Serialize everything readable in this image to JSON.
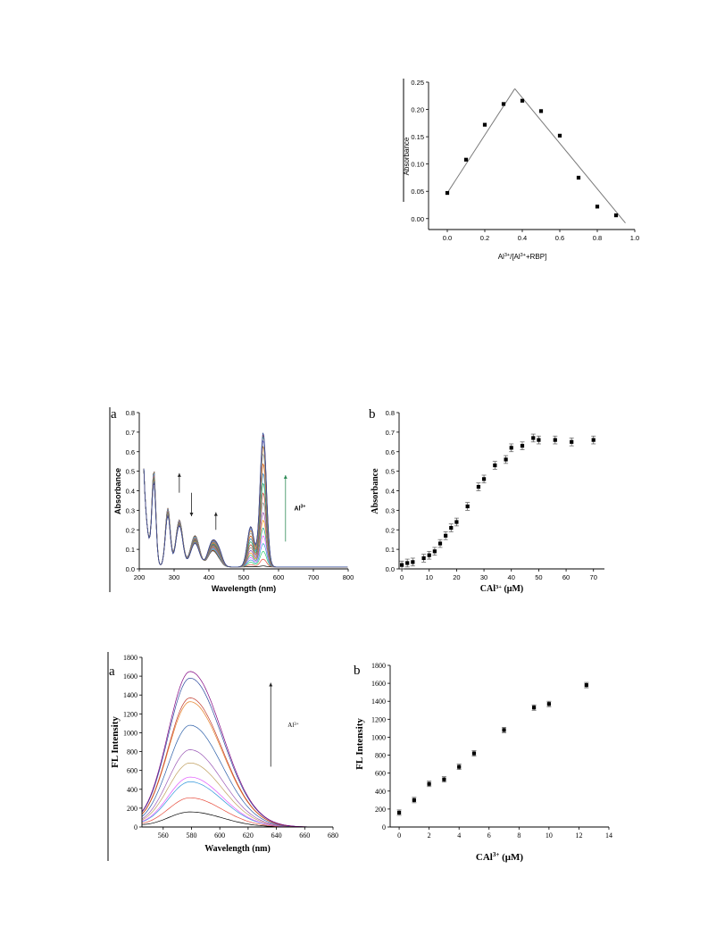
{
  "chart_data": [
    {
      "id": "job",
      "type": "scatter",
      "ylabel": "Absorbance",
      "xlabel_parts": [
        "Al",
        "3+",
        "/[Al",
        "3+",
        "+RBP]"
      ],
      "xlim": [
        -0.1,
        1.0
      ],
      "ylim": [
        -0.02,
        0.25
      ],
      "xticks": [
        "0.0",
        "0.2",
        "0.4",
        "0.6",
        "0.8",
        "1.0"
      ],
      "yticks": [
        "0.00",
        "0.05",
        "0.10",
        "0.15",
        "0.20",
        "0.25"
      ],
      "points": [
        [
          0.0,
          0.047
        ],
        [
          0.1,
          0.108
        ],
        [
          0.2,
          0.172
        ],
        [
          0.3,
          0.21
        ],
        [
          0.4,
          0.216
        ],
        [
          0.5,
          0.197
        ],
        [
          0.6,
          0.152
        ],
        [
          0.7,
          0.075
        ],
        [
          0.8,
          0.022
        ],
        [
          0.9,
          0.006
        ]
      ],
      "fit_lines": [
        [
          [
            0.0,
            0.047
          ],
          [
            0.36,
            0.238
          ]
        ],
        [
          [
            0.36,
            0.238
          ],
          [
            0.95,
            -0.008
          ]
        ]
      ],
      "grid": false
    },
    {
      "id": "uv-a",
      "type": "line",
      "panel_label": "a",
      "xlabel": "Wavelength (nm)",
      "ylabel": "Absorbance",
      "xlim": [
        200,
        800
      ],
      "ylim": [
        0.0,
        0.8
      ],
      "xticks": [
        "200",
        "300",
        "400",
        "500",
        "600",
        "700",
        "800"
      ],
      "yticks": [
        "0.0",
        "0.1",
        "0.2",
        "0.3",
        "0.4",
        "0.5",
        "0.6",
        "0.7",
        "0.8"
      ],
      "annotation_label": "Al",
      "annotation_sup": "3+",
      "peak_values_556nm": [
        0.005,
        0.04,
        0.08,
        0.12,
        0.16,
        0.2,
        0.24,
        0.28,
        0.33,
        0.38,
        0.43,
        0.48,
        0.53,
        0.58,
        0.62,
        0.65,
        0.67,
        0.68,
        0.69
      ],
      "series_colors": [
        "#000000",
        "#e74c3c",
        "#2ecc71",
        "#3498db",
        "#e056fd",
        "#16a085",
        "#f39c12",
        "#8e44ad",
        "#7f8c8d",
        "#c0392b",
        "#27ae60",
        "#2980b9",
        "#d35400",
        "#95a5a6",
        "#b9770e",
        "#6c5ce7",
        "#1abc9c",
        "#c0392b",
        "#2e4a9e"
      ],
      "grid": false
    },
    {
      "id": "uv-b",
      "type": "scatter",
      "panel_label": "b",
      "xlabel": "CAl",
      "xlabel_sup": "3+",
      "xlabel_tail": " (μM)",
      "ylabel": "Absorbance",
      "xlim": [
        -1,
        74
      ],
      "ylim": [
        0.0,
        0.8
      ],
      "xticks": [
        "0",
        "10",
        "20",
        "30",
        "40",
        "50",
        "60",
        "70"
      ],
      "yticks": [
        "0.0",
        "0.1",
        "0.2",
        "0.3",
        "0.4",
        "0.5",
        "0.6",
        "0.7",
        "0.8"
      ],
      "points": [
        [
          0,
          0.02
        ],
        [
          2,
          0.03
        ],
        [
          4,
          0.035
        ],
        [
          8,
          0.055
        ],
        [
          10,
          0.07
        ],
        [
          12,
          0.09
        ],
        [
          14,
          0.13
        ],
        [
          16,
          0.17
        ],
        [
          18,
          0.21
        ],
        [
          20,
          0.24
        ],
        [
          24,
          0.32
        ],
        [
          28,
          0.42
        ],
        [
          30,
          0.46
        ],
        [
          34,
          0.53
        ],
        [
          38,
          0.56
        ],
        [
          40,
          0.62
        ],
        [
          44,
          0.63
        ],
        [
          48,
          0.67
        ],
        [
          50,
          0.66
        ],
        [
          56,
          0.66
        ],
        [
          62,
          0.65
        ],
        [
          70,
          0.66
        ]
      ],
      "grid": false
    },
    {
      "id": "fl-a",
      "type": "line",
      "panel_label": "a",
      "xlabel": "Wavelength (nm)",
      "ylabel": "FL Intensity",
      "xlim": [
        545,
        680
      ],
      "ylim": [
        0,
        1800
      ],
      "xticks": [
        "560",
        "580",
        "600",
        "620",
        "640",
        "660",
        "680"
      ],
      "yticks": [
        "0",
        "200",
        "400",
        "600",
        "800",
        "1000",
        "1200",
        "1400",
        "1600",
        "1800"
      ],
      "annotation_label": "Al",
      "annotation_sup": "3+",
      "peak_values_580nm": [
        160,
        310,
        480,
        530,
        680,
        820,
        1080,
        1330,
        1370,
        1580,
        1650
      ],
      "series_colors": [
        "#000000",
        "#e74c3c",
        "#3498db",
        "#e056fd",
        "#c0a060",
        "#9b59b6",
        "#2c5fa8",
        "#e67e22",
        "#c0392b",
        "#2e4a9e",
        "#800080"
      ],
      "grid": false
    },
    {
      "id": "fl-b",
      "type": "scatter",
      "panel_label": "b",
      "xlabel": "CAl",
      "xlabel_sup": "3+",
      "xlabel_tail": " (μM)",
      "ylabel": "FL Intensity",
      "xlim": [
        -0.6,
        14
      ],
      "ylim": [
        0,
        1800
      ],
      "xticks": [
        "0",
        "2",
        "4",
        "6",
        "8",
        "10",
        "12",
        "14"
      ],
      "yticks": [
        "0",
        "200",
        "400",
        "600",
        "800",
        "1000",
        "1200",
        "1400",
        "1600",
        "1800"
      ],
      "points": [
        [
          0,
          160
        ],
        [
          1,
          300
        ],
        [
          2,
          480
        ],
        [
          3,
          530
        ],
        [
          4,
          670
        ],
        [
          5,
          820
        ],
        [
          7,
          1080
        ],
        [
          9,
          1330
        ],
        [
          10,
          1370
        ],
        [
          12.5,
          1580
        ]
      ],
      "grid": false
    }
  ]
}
